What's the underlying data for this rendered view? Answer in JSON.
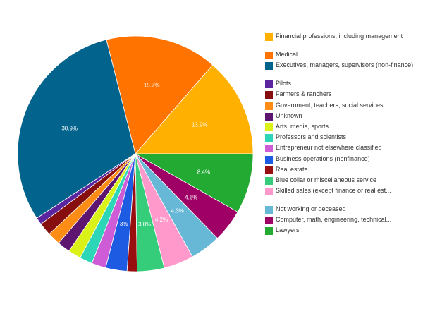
{
  "chart_data": {
    "type": "pie",
    "title": "",
    "start_angle_deg": 0,
    "direction": "counterclockwise",
    "legend_position": "right",
    "series": [
      {
        "name": "",
        "slices": [
          {
            "label": "Financial professions, including management",
            "value": 13.9,
            "display": "13.9%",
            "color": "#FFB000"
          },
          {
            "label": "Medical",
            "value": 15.7,
            "display": "15.7%",
            "color": "#FF7300"
          },
          {
            "label": "Executives, managers, supervisors (non-finance)",
            "value": 30.9,
            "display": "30.9%",
            "color": "#02648C"
          },
          {
            "label": "Pilots",
            "value": 1.0,
            "display": "",
            "color": "#5B25A0"
          },
          {
            "label": "Farmers & ranchers",
            "value": 1.8,
            "display": "",
            "color": "#870E0E"
          },
          {
            "label": "Government, teachers, social services",
            "value": 1.8,
            "display": "",
            "color": "#FF8C14"
          },
          {
            "label": "Unknown",
            "value": 1.8,
            "display": "",
            "color": "#5E1570"
          },
          {
            "label": "Arts, media, sports",
            "value": 1.8,
            "display": "",
            "color": "#DBF218"
          },
          {
            "label": "Professors and scientists",
            "value": 1.8,
            "display": "",
            "color": "#2ED6B8"
          },
          {
            "label": "Entrepreneur not elsewhere classified",
            "value": 2.0,
            "display": "",
            "color": "#CE5CD6"
          },
          {
            "label": "Business operations (nonfinance)",
            "value": 3.0,
            "display": "3%",
            "color": "#1D5CE2"
          },
          {
            "label": "Real estate",
            "value": 1.4,
            "display": "",
            "color": "#990F0F"
          },
          {
            "label": "Blue collar or miscellaneous service",
            "value": 3.8,
            "display": "3.8%",
            "color": "#35CC7A"
          },
          {
            "label": "Skilled sales (except finance or real est...",
            "value": 4.2,
            "display": "4.2%",
            "color": "#FF99CC"
          },
          {
            "label": "Not working or deceased",
            "value": 4.3,
            "display": "4.3%",
            "color": "#66B8D6"
          },
          {
            "label": "Computer, math, engineering, technical...",
            "value": 4.6,
            "display": "4.6%",
            "color": "#9E0066"
          },
          {
            "label": "Lawyers",
            "value": 8.4,
            "display": "8.4%",
            "color": "#22AA33"
          }
        ]
      }
    ]
  },
  "legend_items": [
    {
      "label": "Financial professions, including management",
      "color": "#FFB000",
      "icon": "legend-swatch"
    },
    {
      "label": "Medical",
      "color": "#FF7300",
      "icon": "legend-swatch"
    },
    {
      "label": "Executives, managers, supervisors (non-finance)",
      "color": "#02648C",
      "icon": "legend-swatch"
    },
    {
      "label": "Pilots",
      "color": "#5B25A0",
      "icon": "legend-swatch"
    },
    {
      "label": "Farmers & ranchers",
      "color": "#870E0E",
      "icon": "legend-swatch"
    },
    {
      "label": "Government, teachers, social services",
      "color": "#FF8C14",
      "icon": "legend-swatch"
    },
    {
      "label": "Unknown",
      "color": "#5E1570",
      "icon": "legend-swatch"
    },
    {
      "label": "Arts, media, sports",
      "color": "#DBF218",
      "icon": "legend-swatch"
    },
    {
      "label": "Professors and scientists",
      "color": "#2ED6B8",
      "icon": "legend-swatch"
    },
    {
      "label": "Entrepreneur not elsewhere classified",
      "color": "#CE5CD6",
      "icon": "legend-swatch"
    },
    {
      "label": "Business operations (nonfinance)",
      "color": "#1D5CE2",
      "icon": "legend-swatch"
    },
    {
      "label": "Real estate",
      "color": "#990F0F",
      "icon": "legend-swatch"
    },
    {
      "label": "Blue collar or miscellaneous service",
      "color": "#35CC7A",
      "icon": "legend-swatch"
    },
    {
      "label": "Skilled sales (except finance or real est...",
      "color": "#FF99CC",
      "icon": "legend-swatch"
    },
    {
      "label": "Not working or deceased",
      "color": "#66B8D6",
      "icon": "legend-swatch"
    },
    {
      "label": "Computer, math, engineering, technical...",
      "color": "#9E0066",
      "icon": "legend-swatch"
    },
    {
      "label": "Lawyers",
      "color": "#22AA33",
      "icon": "legend-swatch"
    }
  ]
}
